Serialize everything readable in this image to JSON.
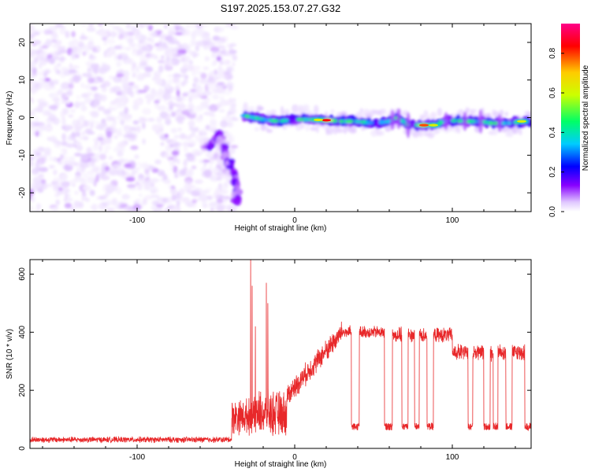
{
  "chart_data": [
    {
      "type": "heatmap",
      "title": "S197.2025.153.07.27.G32",
      "xlabel": "Height of straight line (km)",
      "ylabel": "Frequency (Hz)",
      "xlim": [
        -168,
        150
      ],
      "ylim": [
        -25,
        25
      ],
      "xticks": [
        -100,
        0,
        100
      ],
      "yticks": [
        20,
        10,
        0,
        -10,
        -20
      ],
      "colorbar": {
        "label": "Normalized spectral amplitude",
        "range": [
          0,
          0.95
        ],
        "ticks": [
          0.0,
          0.2,
          0.4,
          0.6,
          0.8
        ],
        "colormap": [
          "#ffffff",
          "#e0c8ff",
          "#8800ff",
          "#0000ff",
          "#00ccff",
          "#00ff66",
          "#ccff00",
          "#ffcc00",
          "#ff0000",
          "#ff0088"
        ]
      },
      "noise_region_x": [
        -168,
        -38
      ],
      "ridge": [
        {
          "x": -32,
          "y": 0.5
        },
        {
          "x": -20,
          "y": -0.5
        },
        {
          "x": -10,
          "y": -1
        },
        {
          "x": 0,
          "y": -0.5
        },
        {
          "x": 10,
          "y": -0.5
        },
        {
          "x": 20,
          "y": -0.7
        },
        {
          "x": 30,
          "y": -1
        },
        {
          "x": 40,
          "y": -1
        },
        {
          "x": 50,
          "y": -1.5
        },
        {
          "x": 60,
          "y": -1
        },
        {
          "x": 65,
          "y": 0
        },
        {
          "x": 72,
          "y": -2
        },
        {
          "x": 80,
          "y": -2
        },
        {
          "x": 88,
          "y": -2
        },
        {
          "x": 95,
          "y": -1
        },
        {
          "x": 100,
          "y": -0.8
        },
        {
          "x": 110,
          "y": -1
        },
        {
          "x": 118,
          "y": -1
        },
        {
          "x": 125,
          "y": -1.5
        },
        {
          "x": 135,
          "y": -1.5
        },
        {
          "x": 145,
          "y": -1
        },
        {
          "x": 150,
          "y": -1
        }
      ],
      "ridge_peaks": [
        {
          "x": 20,
          "y": -0.7,
          "amp": 0.9
        },
        {
          "x": 15,
          "y": -0.6,
          "amp": 0.7
        },
        {
          "x": 82,
          "y": -2,
          "amp": 0.85
        },
        {
          "x": 88,
          "y": -2,
          "amp": 0.7
        },
        {
          "x": 144,
          "y": -1,
          "amp": 0.7
        }
      ],
      "descending_arc": [
        {
          "x": -55,
          "y": -8
        },
        {
          "x": -48,
          "y": -5
        },
        {
          "x": -44,
          "y": -9
        },
        {
          "x": -40,
          "y": -14
        },
        {
          "x": -36,
          "y": -19
        },
        {
          "x": -38,
          "y": -23
        }
      ]
    },
    {
      "type": "line",
      "xlabel": "Height of straight line (km)",
      "ylabel": "SNR (10 * v/v)",
      "xlim": [
        -168,
        150
      ],
      "ylim": [
        0,
        650
      ],
      "xticks": [
        -100,
        0,
        100
      ],
      "yticks": [
        0,
        200,
        400,
        600
      ],
      "color": "#e8282a",
      "segments": [
        {
          "x": [
            -168,
            -40
          ],
          "level": 30,
          "noise": 12
        },
        {
          "x": [
            -40,
            -25
          ],
          "level": 110,
          "noise": 70
        },
        {
          "x": [
            -25,
            -5
          ],
          "level": 120,
          "noise": 90
        },
        {
          "x": [
            -5,
            30
          ],
          "level": 300,
          "noise": 45
        },
        {
          "x": [
            30,
            60
          ],
          "level": 400,
          "noise": 25
        },
        {
          "x": [
            60,
            100
          ],
          "level": 390,
          "noise": 30
        },
        {
          "x": [
            100,
            150
          ],
          "level": 330,
          "noise": 35
        }
      ],
      "spikes": [
        {
          "x": -28,
          "y": 650
        },
        {
          "x": -27,
          "y": 560
        },
        {
          "x": -25,
          "y": 420
        },
        {
          "x": -18,
          "y": 570
        },
        {
          "x": -17,
          "y": 500
        }
      ],
      "dropouts": [
        [
          36,
          41
        ],
        [
          57,
          62
        ],
        [
          68,
          72
        ],
        [
          76,
          79
        ],
        [
          84,
          88
        ],
        [
          110,
          113
        ],
        [
          120,
          124
        ],
        [
          126,
          129
        ],
        [
          134,
          138
        ],
        [
          146,
          150
        ]
      ],
      "dropout_level": 75
    }
  ]
}
